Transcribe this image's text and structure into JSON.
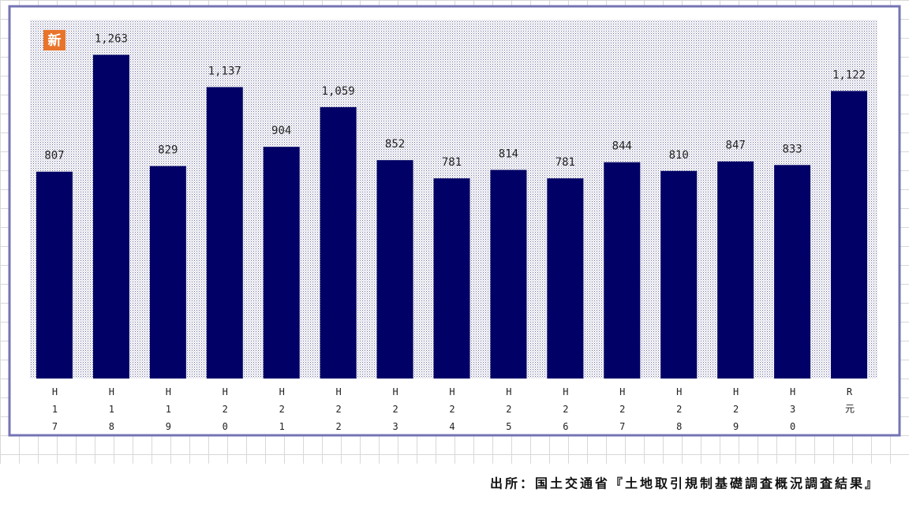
{
  "chart_data": {
    "type": "bar",
    "badge": "新",
    "categories": [
      "H17",
      "H18",
      "H19",
      "H20",
      "H21",
      "H22",
      "H23",
      "H24",
      "H25",
      "H26",
      "H27",
      "H28",
      "H29",
      "H30",
      "R元"
    ],
    "values": [
      807,
      1263,
      829,
      1137,
      904,
      1059,
      852,
      781,
      814,
      781,
      844,
      810,
      847,
      833,
      1122
    ],
    "value_labels": [
      "807",
      "1,263",
      "829",
      "1,137",
      "904",
      "1,059",
      "852",
      "781",
      "814",
      "781",
      "844",
      "810",
      "847",
      "833",
      "1,122"
    ],
    "color": "#000066",
    "ylim": [
      0,
      1400
    ],
    "source": "出所：国土交通省『土地取引規制基礎調査概況調査結果』"
  }
}
